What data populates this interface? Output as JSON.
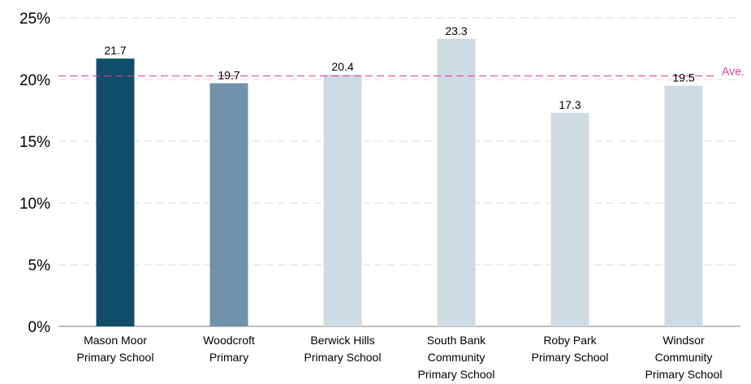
{
  "chart_data": {
    "type": "bar",
    "categories": [
      [
        "Mason Moor",
        "Primary School"
      ],
      [
        "Woodcroft",
        "Primary"
      ],
      [
        "Berwick Hills",
        "Primary School"
      ],
      [
        "South Bank",
        "Community",
        "Primary School"
      ],
      [
        "Roby Park",
        "Primary School"
      ],
      [
        "Windsor",
        "Community",
        "Primary School"
      ]
    ],
    "values": [
      21.7,
      19.7,
      20.4,
      23.3,
      17.3,
      19.5
    ],
    "data_labels": [
      "21.7",
      "19.7",
      "20.4",
      "23.3",
      "17.3",
      "19.5"
    ],
    "bar_colors": [
      "#0f4e6a",
      "#7093ab",
      "#cfdbe2",
      "#cfdbe2",
      "#cfdbe2",
      "#cfdbe2"
    ],
    "average": {
      "value": 20.3,
      "label": "Ave.",
      "color": "#e0399b"
    },
    "ylim": [
      0,
      25
    ],
    "yticks": [
      0,
      5,
      10,
      15,
      20,
      25
    ],
    "ytick_labels": [
      "0%",
      "5%",
      "10%",
      "15%",
      "20%",
      "25%"
    ],
    "grid": true,
    "grid_color": "#d9d9d9",
    "title": "",
    "xlabel": "",
    "ylabel": ""
  }
}
